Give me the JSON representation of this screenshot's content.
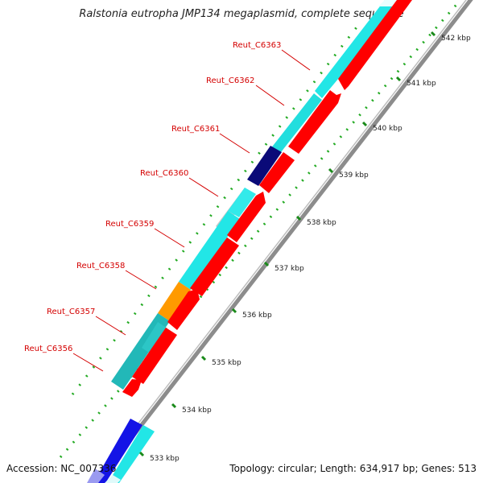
{
  "header": {
    "title": "Ralstonia eutropha JMP134 megaplasmid, complete sequence"
  },
  "footer": {
    "accession": "Accession: NC_007336",
    "summary": "Topology: circular; Length: 634,917 bp; Genes: 513"
  },
  "colors": {
    "label": "#d40000",
    "forward_gene": "#ff0000",
    "tick_major": "#1a8a1a",
    "tick_minor": "#22aa22",
    "backbone": "#8c8c8c"
  },
  "ticks": [
    {
      "label": "533 kbp"
    },
    {
      "label": "534 kbp"
    },
    {
      "label": "535 kbp"
    },
    {
      "label": "536 kbp"
    },
    {
      "label": "537 kbp"
    },
    {
      "label": "538 kbp"
    },
    {
      "label": "539 kbp"
    },
    {
      "label": "540 kbp"
    },
    {
      "label": "541 kbp"
    },
    {
      "label": "542 kbp"
    }
  ],
  "gene_labels": [
    {
      "name": "Reut_C6363"
    },
    {
      "name": "Reut_C6362"
    },
    {
      "name": "Reut_C6361"
    },
    {
      "name": "Reut_C6360"
    },
    {
      "name": "Reut_C6359"
    },
    {
      "name": "Reut_C6358"
    },
    {
      "name": "Reut_C6357"
    },
    {
      "name": "Reut_C6356"
    }
  ]
}
